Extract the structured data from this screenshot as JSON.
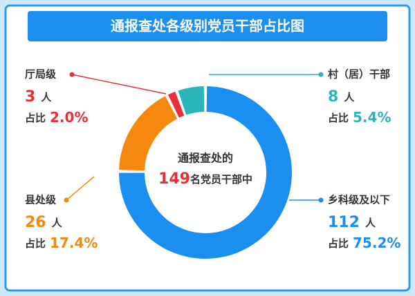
{
  "chart_data": {
    "type": "donut",
    "title": "通报查处各级别党员干部占比图",
    "center_prefix": "通报查处的",
    "total": 149,
    "center_suffix": "名党员干部中",
    "unit": "人",
    "share_label": "占比",
    "categories": [
      "乡科级及以下",
      "县处级",
      "厅局级",
      "村（居）干部"
    ],
    "counts": [
      112,
      26,
      3,
      8
    ],
    "values": [
      75.2,
      17.4,
      2.0,
      5.4
    ],
    "value_labels": [
      "75.2%",
      "17.4%",
      "2.0%",
      "5.4%"
    ],
    "colors": [
      "#1b8ff0",
      "#f5880e",
      "#e8303a",
      "#2ab5b8"
    ]
  }
}
